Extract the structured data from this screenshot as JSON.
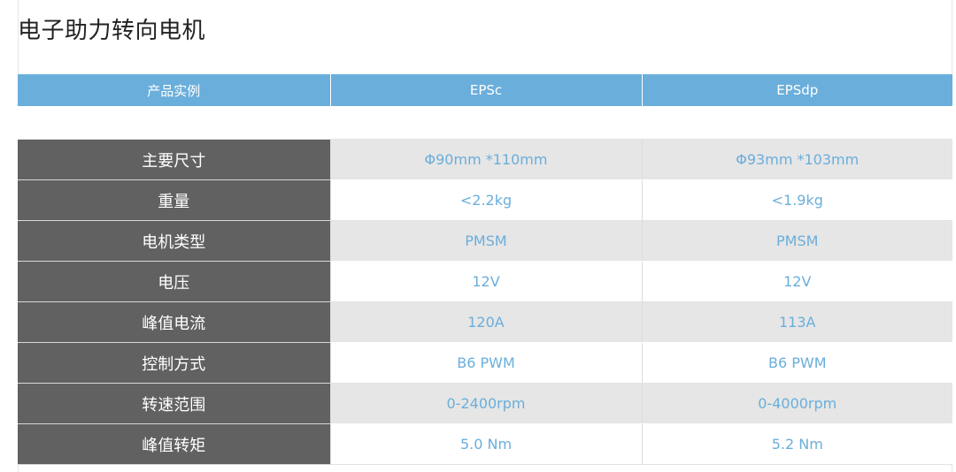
{
  "page": {
    "title": "电子助力转向电机"
  },
  "table": {
    "headers": [
      "产品实例",
      "EPSc",
      "EPSdp"
    ],
    "rows": [
      {
        "label": "主要尺寸",
        "epsc": "Φ90mm *110mm",
        "epsdp": "Φ93mm *103mm"
      },
      {
        "label": "重量",
        "epsc": "<2.2kg",
        "epsdp": "<1.9kg"
      },
      {
        "label": "电机类型",
        "epsc": "PMSM",
        "epsdp": "PMSM"
      },
      {
        "label": "电压",
        "epsc": "12V",
        "epsdp": "12V"
      },
      {
        "label": "峰值电流",
        "epsc": "120A",
        "epsdp": "113A"
      },
      {
        "label": "控制方式",
        "epsc": "B6 PWM",
        "epsdp": "B6 PWM"
      },
      {
        "label": "转速范围",
        "epsc": "0-2400rpm",
        "epsdp": "0-4000rpm"
      },
      {
        "label": "峰值转矩",
        "epsc": "5.0 Nm",
        "epsdp": "5.2 Nm"
      }
    ]
  },
  "colors": {
    "header_bg": "#6aaedb",
    "label_bg": "#616161",
    "value_text": "#6aaedb",
    "shaded_row_bg": "#e6e6e6"
  }
}
